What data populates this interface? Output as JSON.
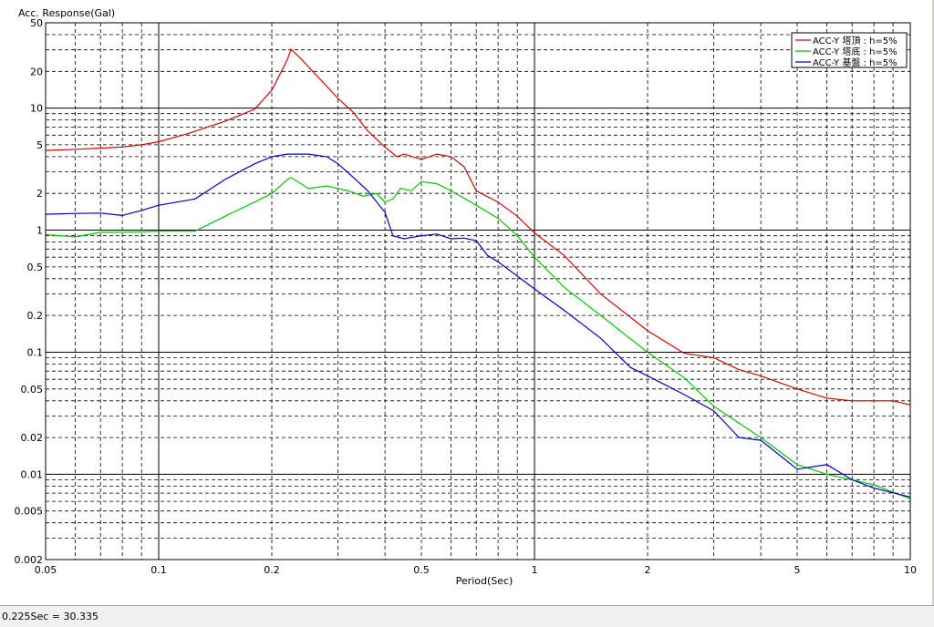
{
  "status_bar": {
    "readout": "0.225Sec = 30.335"
  },
  "chart_data": {
    "type": "line",
    "ylabel": "Acc. Response(Gal)",
    "xlabel": "Period(Sec)",
    "x_scale": "log",
    "y_scale": "log",
    "xlim": [
      0.05,
      10
    ],
    "ylim": [
      0.002,
      50
    ],
    "grid": true,
    "legend_position": "top-right",
    "x_ticks": [
      {
        "value": 0.05,
        "label": "0.05"
      },
      {
        "value": 0.1,
        "label": "0.1"
      },
      {
        "value": 0.2,
        "label": "0.2"
      },
      {
        "value": 0.5,
        "label": "0.5"
      },
      {
        "value": 1,
        "label": "1"
      },
      {
        "value": 2,
        "label": "2"
      },
      {
        "value": 5,
        "label": "5"
      },
      {
        "value": 10,
        "label": "10"
      }
    ],
    "y_ticks": [
      {
        "value": 50,
        "label": "50"
      },
      {
        "value": 20,
        "label": "20"
      },
      {
        "value": 10,
        "label": "10"
      },
      {
        "value": 5,
        "label": "5"
      },
      {
        "value": 2,
        "label": "2"
      },
      {
        "value": 1,
        "label": "1"
      },
      {
        "value": 0.5,
        "label": "0.5"
      },
      {
        "value": 0.2,
        "label": "0.2"
      },
      {
        "value": 0.1,
        "label": "0.1"
      },
      {
        "value": 0.05,
        "label": "0.05"
      },
      {
        "value": 0.02,
        "label": "0.02"
      },
      {
        "value": 0.01,
        "label": "0.01"
      },
      {
        "value": 0.005,
        "label": "0.005"
      },
      {
        "value": 0.002,
        "label": "0.002"
      }
    ],
    "series": [
      {
        "name": "ACC-Y 塔頂 : h=5%",
        "color": "#e00000",
        "points": [
          [
            0.05,
            4.5
          ],
          [
            0.06,
            4.6
          ],
          [
            0.07,
            4.7
          ],
          [
            0.08,
            4.8
          ],
          [
            0.09,
            5.0
          ],
          [
            0.1,
            5.3
          ],
          [
            0.12,
            6.2
          ],
          [
            0.15,
            7.8
          ],
          [
            0.18,
            9.8
          ],
          [
            0.2,
            14
          ],
          [
            0.22,
            25
          ],
          [
            0.225,
            30.3
          ],
          [
            0.24,
            25
          ],
          [
            0.27,
            17
          ],
          [
            0.3,
            12
          ],
          [
            0.33,
            9.2
          ],
          [
            0.36,
            6.5
          ],
          [
            0.4,
            4.8
          ],
          [
            0.43,
            4.0
          ],
          [
            0.45,
            4.2
          ],
          [
            0.5,
            3.8
          ],
          [
            0.55,
            4.2
          ],
          [
            0.6,
            4.0
          ],
          [
            0.65,
            3.3
          ],
          [
            0.7,
            2.1
          ],
          [
            0.8,
            1.7
          ],
          [
            0.9,
            1.3
          ],
          [
            1.0,
            0.95
          ],
          [
            1.2,
            0.62
          ],
          [
            1.5,
            0.3
          ],
          [
            2.0,
            0.15
          ],
          [
            2.5,
            0.098
          ],
          [
            3.0,
            0.09
          ],
          [
            3.5,
            0.072
          ],
          [
            4.0,
            0.064
          ],
          [
            5.0,
            0.05
          ],
          [
            6.0,
            0.042
          ],
          [
            7.0,
            0.04
          ],
          [
            8.0,
            0.04
          ],
          [
            9.0,
            0.04
          ],
          [
            10,
            0.037
          ]
        ]
      },
      {
        "name": "ACC-Y 塔底 : h=5%",
        "color": "#00c800",
        "points": [
          [
            0.05,
            0.92
          ],
          [
            0.06,
            0.88
          ],
          [
            0.07,
            0.96
          ],
          [
            0.08,
            0.96
          ],
          [
            0.09,
            0.97
          ],
          [
            0.1,
            0.98
          ],
          [
            0.125,
            0.98
          ],
          [
            0.15,
            1.3
          ],
          [
            0.18,
            1.7
          ],
          [
            0.2,
            2.0
          ],
          [
            0.22,
            2.6
          ],
          [
            0.225,
            2.7
          ],
          [
            0.25,
            2.2
          ],
          [
            0.28,
            2.3
          ],
          [
            0.32,
            2.1
          ],
          [
            0.35,
            1.9
          ],
          [
            0.38,
            2.0
          ],
          [
            0.4,
            1.7
          ],
          [
            0.42,
            1.8
          ],
          [
            0.44,
            2.2
          ],
          [
            0.47,
            2.1
          ],
          [
            0.5,
            2.5
          ],
          [
            0.55,
            2.4
          ],
          [
            0.6,
            2.1
          ],
          [
            0.7,
            1.6
          ],
          [
            0.8,
            1.25
          ],
          [
            0.9,
            0.9
          ],
          [
            1.0,
            0.6
          ],
          [
            1.2,
            0.34
          ],
          [
            1.5,
            0.2
          ],
          [
            2.0,
            0.1
          ],
          [
            2.5,
            0.062
          ],
          [
            3.0,
            0.036
          ],
          [
            4.0,
            0.02
          ],
          [
            5.0,
            0.012
          ],
          [
            6.0,
            0.01
          ],
          [
            7.0,
            0.009
          ],
          [
            8.0,
            0.0082
          ],
          [
            10,
            0.0063
          ]
        ]
      },
      {
        "name": "ACC-Y 基盤 : h=5%",
        "color": "#0000d0",
        "points": [
          [
            0.05,
            1.35
          ],
          [
            0.06,
            1.37
          ],
          [
            0.07,
            1.38
          ],
          [
            0.08,
            1.32
          ],
          [
            0.09,
            1.45
          ],
          [
            0.1,
            1.6
          ],
          [
            0.125,
            1.8
          ],
          [
            0.15,
            2.6
          ],
          [
            0.18,
            3.5
          ],
          [
            0.2,
            4.0
          ],
          [
            0.22,
            4.2
          ],
          [
            0.25,
            4.2
          ],
          [
            0.28,
            4.0
          ],
          [
            0.3,
            3.5
          ],
          [
            0.33,
            2.7
          ],
          [
            0.36,
            2.1
          ],
          [
            0.4,
            1.4
          ],
          [
            0.42,
            0.9
          ],
          [
            0.45,
            0.85
          ],
          [
            0.5,
            0.9
          ],
          [
            0.55,
            0.93
          ],
          [
            0.6,
            0.85
          ],
          [
            0.65,
            0.86
          ],
          [
            0.7,
            0.82
          ],
          [
            0.75,
            0.62
          ],
          [
            0.8,
            0.55
          ],
          [
            0.9,
            0.42
          ],
          [
            1.0,
            0.33
          ],
          [
            1.2,
            0.22
          ],
          [
            1.5,
            0.13
          ],
          [
            1.8,
            0.075
          ],
          [
            2.0,
            0.064
          ],
          [
            2.5,
            0.045
          ],
          [
            3.0,
            0.033
          ],
          [
            3.5,
            0.02
          ],
          [
            4.0,
            0.019
          ],
          [
            5.0,
            0.011
          ],
          [
            6.0,
            0.012
          ],
          [
            7.0,
            0.009
          ],
          [
            8.0,
            0.0077
          ],
          [
            10,
            0.0065
          ]
        ]
      }
    ]
  }
}
